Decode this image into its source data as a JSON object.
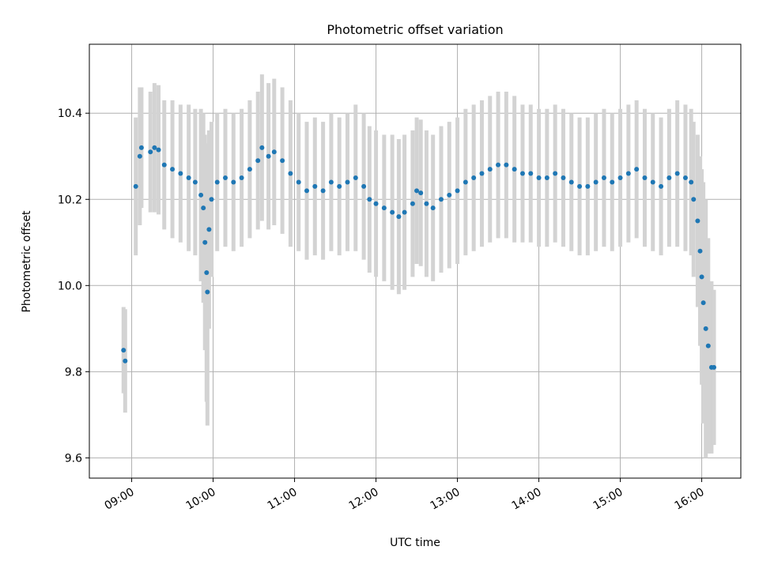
{
  "chart_data": {
    "type": "scatter",
    "title": "Photometric offset variation",
    "xlabel": "UTC time",
    "ylabel": "Photometric offset",
    "x_unit": "hours (UTC)",
    "xlim": [
      8.48,
      16.48
    ],
    "ylim": [
      9.553,
      10.56
    ],
    "grid": true,
    "x_ticks": [
      {
        "value": 9,
        "label": "09:00"
      },
      {
        "value": 10,
        "label": "10:00"
      },
      {
        "value": 11,
        "label": "11:00"
      },
      {
        "value": 12,
        "label": "12:00"
      },
      {
        "value": 13,
        "label": "13:00"
      },
      {
        "value": 14,
        "label": "14:00"
      },
      {
        "value": 15,
        "label": "15:00"
      },
      {
        "value": 16,
        "label": "16:00"
      }
    ],
    "y_ticks": [
      {
        "value": 9.6,
        "label": "9.6"
      },
      {
        "value": 9.8,
        "label": "9.8"
      },
      {
        "value": 10.0,
        "label": "10.0"
      },
      {
        "value": 10.2,
        "label": "10.2"
      },
      {
        "value": 10.4,
        "label": "10.4"
      }
    ],
    "colors": {
      "points": "#1f77b4",
      "errorbars": "#d3d3d3",
      "grid": "#b0b0b0"
    },
    "series": [
      {
        "points": [
          [
            8.9,
            9.85,
            0.1
          ],
          [
            8.92,
            9.825,
            0.12
          ],
          [
            9.05,
            10.23,
            0.16
          ],
          [
            9.1,
            10.3,
            0.16
          ],
          [
            9.12,
            10.32,
            0.14
          ],
          [
            9.23,
            10.31,
            0.14
          ],
          [
            9.28,
            10.32,
            0.15
          ],
          [
            9.33,
            10.315,
            0.15
          ],
          [
            9.4,
            10.28,
            0.15
          ],
          [
            9.5,
            10.27,
            0.16
          ],
          [
            9.6,
            10.26,
            0.16
          ],
          [
            9.7,
            10.25,
            0.17
          ],
          [
            9.78,
            10.24,
            0.17
          ],
          [
            9.85,
            10.21,
            0.2
          ],
          [
            9.88,
            10.18,
            0.22
          ],
          [
            9.9,
            10.1,
            0.25
          ],
          [
            9.92,
            10.03,
            0.3
          ],
          [
            9.93,
            9.985,
            0.31
          ],
          [
            9.95,
            10.13,
            0.23
          ],
          [
            9.98,
            10.2,
            0.18
          ],
          [
            10.05,
            10.24,
            0.16
          ],
          [
            10.15,
            10.25,
            0.16
          ],
          [
            10.25,
            10.24,
            0.16
          ],
          [
            10.35,
            10.25,
            0.16
          ],
          [
            10.45,
            10.27,
            0.16
          ],
          [
            10.55,
            10.29,
            0.16
          ],
          [
            10.6,
            10.32,
            0.17
          ],
          [
            10.68,
            10.3,
            0.17
          ],
          [
            10.75,
            10.31,
            0.17
          ],
          [
            10.85,
            10.29,
            0.17
          ],
          [
            10.95,
            10.26,
            0.17
          ],
          [
            11.05,
            10.24,
            0.16
          ],
          [
            11.15,
            10.22,
            0.16
          ],
          [
            11.25,
            10.23,
            0.16
          ],
          [
            11.35,
            10.22,
            0.16
          ],
          [
            11.45,
            10.24,
            0.16
          ],
          [
            11.55,
            10.23,
            0.16
          ],
          [
            11.65,
            10.24,
            0.16
          ],
          [
            11.75,
            10.25,
            0.17
          ],
          [
            11.85,
            10.23,
            0.17
          ],
          [
            11.92,
            10.2,
            0.17
          ],
          [
            12.0,
            10.19,
            0.17
          ],
          [
            12.1,
            10.18,
            0.17
          ],
          [
            12.2,
            10.17,
            0.18
          ],
          [
            12.28,
            10.16,
            0.18
          ],
          [
            12.35,
            10.17,
            0.18
          ],
          [
            12.45,
            10.19,
            0.17
          ],
          [
            12.5,
            10.22,
            0.17
          ],
          [
            12.55,
            10.215,
            0.17
          ],
          [
            12.62,
            10.19,
            0.17
          ],
          [
            12.7,
            10.18,
            0.17
          ],
          [
            12.8,
            10.2,
            0.17
          ],
          [
            12.9,
            10.21,
            0.17
          ],
          [
            13.0,
            10.22,
            0.17
          ],
          [
            13.1,
            10.24,
            0.17
          ],
          [
            13.2,
            10.25,
            0.17
          ],
          [
            13.3,
            10.26,
            0.17
          ],
          [
            13.4,
            10.27,
            0.17
          ],
          [
            13.5,
            10.28,
            0.17
          ],
          [
            13.6,
            10.28,
            0.17
          ],
          [
            13.7,
            10.27,
            0.17
          ],
          [
            13.8,
            10.26,
            0.16
          ],
          [
            13.9,
            10.26,
            0.16
          ],
          [
            14.0,
            10.25,
            0.16
          ],
          [
            14.1,
            10.25,
            0.16
          ],
          [
            14.2,
            10.26,
            0.16
          ],
          [
            14.3,
            10.25,
            0.16
          ],
          [
            14.4,
            10.24,
            0.16
          ],
          [
            14.5,
            10.23,
            0.16
          ],
          [
            14.6,
            10.23,
            0.16
          ],
          [
            14.7,
            10.24,
            0.16
          ],
          [
            14.8,
            10.25,
            0.16
          ],
          [
            14.9,
            10.24,
            0.16
          ],
          [
            15.0,
            10.25,
            0.16
          ],
          [
            15.1,
            10.26,
            0.16
          ],
          [
            15.2,
            10.27,
            0.16
          ],
          [
            15.3,
            10.25,
            0.16
          ],
          [
            15.4,
            10.24,
            0.16
          ],
          [
            15.5,
            10.23,
            0.16
          ],
          [
            15.6,
            10.25,
            0.16
          ],
          [
            15.7,
            10.26,
            0.17
          ],
          [
            15.8,
            10.25,
            0.17
          ],
          [
            15.87,
            10.24,
            0.17
          ],
          [
            15.9,
            10.2,
            0.18
          ],
          [
            15.95,
            10.15,
            0.2
          ],
          [
            15.98,
            10.08,
            0.22
          ],
          [
            16.0,
            10.02,
            0.25
          ],
          [
            16.02,
            9.96,
            0.28
          ],
          [
            16.05,
            9.9,
            0.3
          ],
          [
            16.08,
            9.86,
            0.25
          ],
          [
            16.12,
            9.81,
            0.2
          ],
          [
            16.15,
            9.81,
            0.18
          ]
        ]
      }
    ]
  }
}
